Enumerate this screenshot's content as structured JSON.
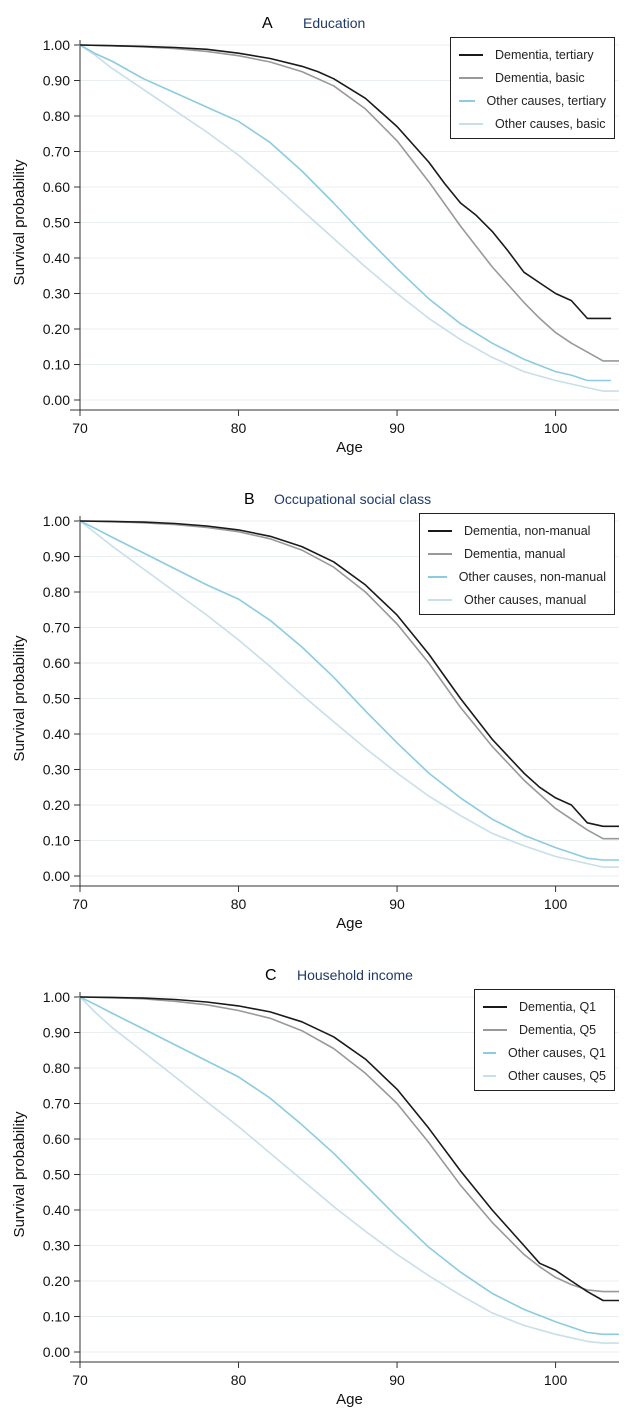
{
  "chart_data": [
    {
      "type": "line",
      "letter": "A",
      "title": "Education",
      "xlabel": "Age",
      "ylabel": "Survival probability",
      "xlim": [
        70,
        104
      ],
      "ylim": [
        0,
        1
      ],
      "xticks": [
        "70",
        "80",
        "90",
        "100"
      ],
      "yticks": [
        "0.00",
        "0.10",
        "0.20",
        "0.30",
        "0.40",
        "0.50",
        "0.60",
        "0.70",
        "0.80",
        "0.90",
        "1.00"
      ],
      "grid": true,
      "legend_position": "top-right",
      "series": [
        {
          "name": "Dementia, tertiary",
          "color": "#1a1a1a",
          "x": [
            70,
            72,
            74,
            76,
            78,
            80,
            82,
            84,
            85,
            86,
            88,
            90,
            92,
            93,
            94,
            95,
            96,
            97,
            98,
            99,
            100,
            101,
            102,
            103,
            103.5
          ],
          "y": [
            1.0,
            0.998,
            0.996,
            0.993,
            0.988,
            0.977,
            0.962,
            0.94,
            0.925,
            0.905,
            0.85,
            0.77,
            0.67,
            0.61,
            0.555,
            0.52,
            0.475,
            0.42,
            0.36,
            0.33,
            0.3,
            0.28,
            0.23,
            0.23,
            0.23
          ]
        },
        {
          "name": "Dementia, basic",
          "color": "#999999",
          "x": [
            70,
            72,
            74,
            76,
            78,
            80,
            82,
            84,
            86,
            88,
            90,
            92,
            94,
            96,
            98,
            99,
            100,
            101,
            102,
            103,
            104
          ],
          "y": [
            1.0,
            0.998,
            0.995,
            0.99,
            0.982,
            0.97,
            0.952,
            0.925,
            0.885,
            0.82,
            0.73,
            0.615,
            0.49,
            0.375,
            0.275,
            0.23,
            0.19,
            0.16,
            0.135,
            0.11,
            0.11
          ]
        },
        {
          "name": "Other causes, tertiary",
          "color": "#8ccbe0",
          "x": [
            70,
            71,
            72,
            74,
            76,
            78,
            80,
            82,
            84,
            86,
            88,
            90,
            92,
            94,
            96,
            98,
            100,
            101,
            102,
            103.5
          ],
          "y": [
            1.0,
            0.975,
            0.955,
            0.905,
            0.865,
            0.825,
            0.785,
            0.725,
            0.645,
            0.555,
            0.46,
            0.37,
            0.285,
            0.215,
            0.16,
            0.115,
            0.08,
            0.07,
            0.055,
            0.055
          ]
        },
        {
          "name": "Other causes, basic",
          "color": "#c8dfe8",
          "x": [
            70,
            71,
            72,
            74,
            76,
            78,
            80,
            82,
            84,
            86,
            88,
            90,
            92,
            94,
            96,
            98,
            100,
            101,
            102,
            103,
            104
          ],
          "y": [
            1.0,
            0.97,
            0.935,
            0.875,
            0.815,
            0.755,
            0.69,
            0.615,
            0.535,
            0.455,
            0.375,
            0.3,
            0.23,
            0.17,
            0.12,
            0.08,
            0.055,
            0.045,
            0.035,
            0.025,
            0.025
          ]
        }
      ]
    },
    {
      "type": "line",
      "letter": "B",
      "title": "Occupational social class",
      "xlabel": "Age",
      "ylabel": "Survival probability",
      "xlim": [
        70,
        104
      ],
      "ylim": [
        0,
        1
      ],
      "xticks": [
        "70",
        "80",
        "90",
        "100"
      ],
      "yticks": [
        "0.00",
        "0.10",
        "0.20",
        "0.30",
        "0.40",
        "0.50",
        "0.60",
        "0.70",
        "0.80",
        "0.90",
        "1.00"
      ],
      "grid": true,
      "legend_position": "top-right",
      "series": [
        {
          "name": "Dementia, non-manual",
          "color": "#1a1a1a",
          "x": [
            70,
            72,
            74,
            76,
            78,
            80,
            82,
            84,
            86,
            88,
            90,
            92,
            94,
            96,
            98,
            99,
            100,
            101,
            102,
            103,
            104
          ],
          "y": [
            1.0,
            0.999,
            0.997,
            0.993,
            0.986,
            0.975,
            0.957,
            0.928,
            0.885,
            0.82,
            0.735,
            0.625,
            0.5,
            0.385,
            0.29,
            0.25,
            0.22,
            0.2,
            0.15,
            0.14,
            0.14
          ]
        },
        {
          "name": "Dementia, manual",
          "color": "#999999",
          "x": [
            70,
            72,
            74,
            76,
            78,
            80,
            82,
            84,
            86,
            88,
            90,
            92,
            94,
            96,
            98,
            99,
            100,
            101,
            102,
            103,
            104
          ],
          "y": [
            1.0,
            0.998,
            0.995,
            0.99,
            0.982,
            0.97,
            0.95,
            0.918,
            0.87,
            0.8,
            0.71,
            0.6,
            0.475,
            0.365,
            0.27,
            0.23,
            0.19,
            0.16,
            0.13,
            0.105,
            0.105
          ]
        },
        {
          "name": "Other causes, non-manual",
          "color": "#8ccbe0",
          "x": [
            70,
            71,
            72,
            74,
            76,
            78,
            80,
            82,
            84,
            86,
            88,
            90,
            92,
            94,
            96,
            98,
            100,
            101,
            102,
            103,
            104
          ],
          "y": [
            1.0,
            0.978,
            0.955,
            0.91,
            0.865,
            0.82,
            0.78,
            0.72,
            0.645,
            0.56,
            0.465,
            0.375,
            0.29,
            0.22,
            0.16,
            0.115,
            0.08,
            0.065,
            0.05,
            0.045,
            0.045
          ]
        },
        {
          "name": "Other causes, manual",
          "color": "#c8dfe8",
          "x": [
            70,
            71,
            72,
            74,
            76,
            78,
            80,
            82,
            84,
            86,
            88,
            90,
            92,
            94,
            96,
            98,
            100,
            101,
            102,
            103,
            104
          ],
          "y": [
            1.0,
            0.965,
            0.93,
            0.865,
            0.8,
            0.735,
            0.665,
            0.59,
            0.51,
            0.435,
            0.36,
            0.29,
            0.225,
            0.17,
            0.12,
            0.085,
            0.055,
            0.045,
            0.035,
            0.025,
            0.025
          ]
        }
      ]
    },
    {
      "type": "line",
      "letter": "C",
      "title": "Household income",
      "xlabel": "Age",
      "ylabel": "Survival probability",
      "xlim": [
        70,
        104
      ],
      "ylim": [
        0,
        1
      ],
      "xticks": [
        "70",
        "80",
        "90",
        "100"
      ],
      "yticks": [
        "0.00",
        "0.10",
        "0.20",
        "0.30",
        "0.40",
        "0.50",
        "0.60",
        "0.70",
        "0.80",
        "0.90",
        "1.00"
      ],
      "grid": true,
      "legend_position": "top-right",
      "series": [
        {
          "name": "Dementia, Q1",
          "color": "#1a1a1a",
          "x": [
            70,
            72,
            74,
            76,
            78,
            80,
            82,
            84,
            86,
            88,
            90,
            92,
            94,
            96,
            98,
            99,
            100,
            101,
            102,
            103,
            104
          ],
          "y": [
            1.0,
            0.999,
            0.997,
            0.993,
            0.986,
            0.975,
            0.958,
            0.93,
            0.888,
            0.825,
            0.74,
            0.63,
            0.51,
            0.4,
            0.3,
            0.25,
            0.23,
            0.2,
            0.17,
            0.145,
            0.145
          ]
        },
        {
          "name": "Dementia, Q5",
          "color": "#999999",
          "x": [
            70,
            72,
            74,
            76,
            78,
            80,
            82,
            84,
            86,
            88,
            90,
            92,
            94,
            96,
            98,
            99,
            100,
            101,
            102,
            103,
            104
          ],
          "y": [
            1.0,
            0.998,
            0.995,
            0.988,
            0.978,
            0.962,
            0.94,
            0.905,
            0.855,
            0.785,
            0.7,
            0.59,
            0.47,
            0.365,
            0.275,
            0.24,
            0.21,
            0.19,
            0.175,
            0.17,
            0.17
          ]
        },
        {
          "name": "Other causes, Q1",
          "color": "#8ccbe0",
          "x": [
            70,
            71,
            72,
            74,
            76,
            78,
            80,
            82,
            84,
            86,
            88,
            90,
            92,
            94,
            96,
            98,
            100,
            101,
            102,
            103,
            104
          ],
          "y": [
            1.0,
            0.978,
            0.955,
            0.91,
            0.865,
            0.82,
            0.775,
            0.715,
            0.64,
            0.56,
            0.47,
            0.38,
            0.295,
            0.225,
            0.165,
            0.12,
            0.085,
            0.07,
            0.055,
            0.05,
            0.05
          ]
        },
        {
          "name": "Other causes, Q5",
          "color": "#c8dfe8",
          "x": [
            70,
            71,
            72,
            74,
            76,
            78,
            80,
            82,
            84,
            86,
            88,
            90,
            92,
            94,
            96,
            98,
            100,
            101,
            102,
            103,
            104
          ],
          "y": [
            1.0,
            0.955,
            0.915,
            0.845,
            0.775,
            0.705,
            0.635,
            0.56,
            0.485,
            0.41,
            0.34,
            0.275,
            0.215,
            0.16,
            0.11,
            0.075,
            0.05,
            0.04,
            0.03,
            0.025,
            0.025
          ]
        }
      ]
    }
  ]
}
